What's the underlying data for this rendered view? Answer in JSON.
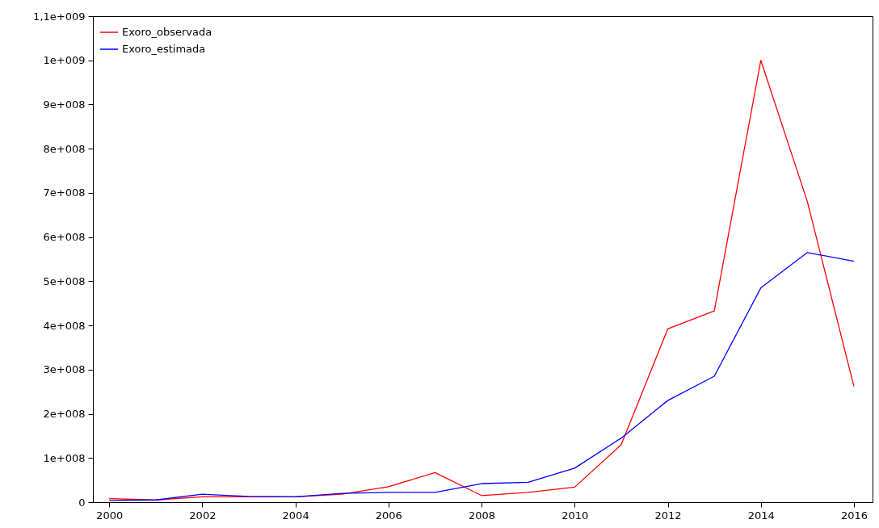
{
  "chart_data": {
    "type": "line",
    "x": [
      2000,
      2001,
      2002,
      2003,
      2004,
      2005,
      2006,
      2007,
      2008,
      2009,
      2010,
      2011,
      2012,
      2013,
      2014,
      2015,
      2016
    ],
    "series": [
      {
        "name": "Exoro_observada",
        "color": "#ff0000",
        "values": [
          8000000,
          5000000,
          12000000,
          12000000,
          12000000,
          18000000,
          35000000,
          67000000,
          15000000,
          22000000,
          34000000,
          130000000,
          392000000,
          433000000,
          1000000000,
          680000000,
          262000000
        ]
      },
      {
        "name": "Exoro_estimada",
        "color": "#0000ff",
        "values": [
          4000000,
          5000000,
          18000000,
          13000000,
          12000000,
          20000000,
          22000000,
          22000000,
          42000000,
          45000000,
          77000000,
          145000000,
          230000000,
          285000000,
          485000000,
          565000000,
          545000000
        ]
      }
    ],
    "xlim": [
      1999.65,
      2016.4
    ],
    "xticks": [
      2000,
      2002,
      2004,
      2006,
      2008,
      2010,
      2012,
      2014,
      2016
    ],
    "ylim": [
      0,
      1100000000
    ],
    "yticks": [
      {
        "value": 0,
        "label": "0"
      },
      {
        "value": 100000000,
        "label": "1e+008"
      },
      {
        "value": 200000000,
        "label": "2e+008"
      },
      {
        "value": 300000000,
        "label": "3e+008"
      },
      {
        "value": 400000000,
        "label": "4e+008"
      },
      {
        "value": 500000000,
        "label": "5e+008"
      },
      {
        "value": 600000000,
        "label": "6e+008"
      },
      {
        "value": 700000000,
        "label": "7e+008"
      },
      {
        "value": 800000000,
        "label": "8e+008"
      },
      {
        "value": 900000000,
        "label": "9e+008"
      },
      {
        "value": 1000000000,
        "label": "1e+009"
      },
      {
        "value": 1100000000,
        "label": "1,1e+009"
      }
    ],
    "grid": false,
    "legend": "top left",
    "line_style": "solid",
    "marker": "none"
  }
}
